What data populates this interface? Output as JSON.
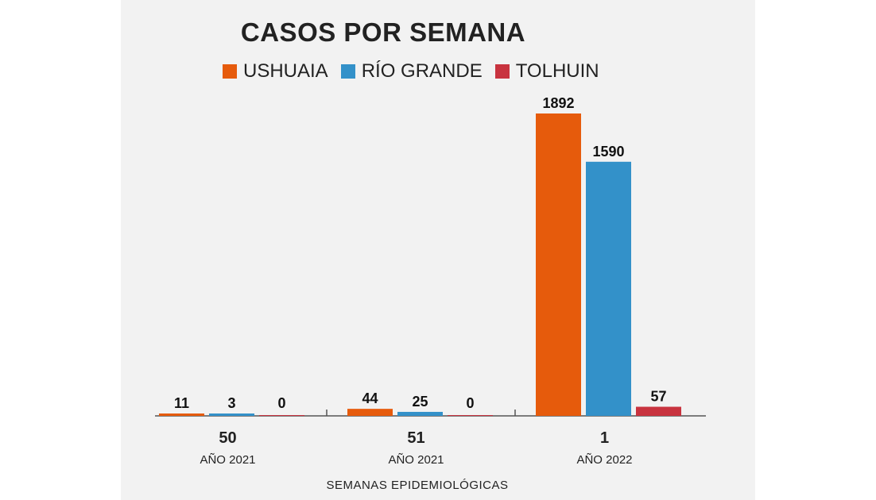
{
  "chart_data": {
    "type": "bar",
    "title": "CASOS POR SEMANA",
    "xlabel": "SEMANAS EPIDEMIOLÓGICAS",
    "ylabel": "",
    "categories": [
      "50",
      "51",
      "1"
    ],
    "category_sublabels": [
      "AÑO 2021",
      "AÑO 2021",
      "AÑO 2022"
    ],
    "series": [
      {
        "name": "USHUAIA",
        "color": "#e65b0c",
        "values": [
          11,
          44,
          1892
        ]
      },
      {
        "name": "RÍO GRANDE",
        "color": "#3391c9",
        "values": [
          3,
          25,
          1590
        ]
      },
      {
        "name": "TOLHUIN",
        "color": "#c8333f",
        "values": [
          0,
          0,
          57
        ]
      }
    ],
    "ylim": [
      0,
      1892
    ],
    "grid": false,
    "legend_position": "top"
  }
}
